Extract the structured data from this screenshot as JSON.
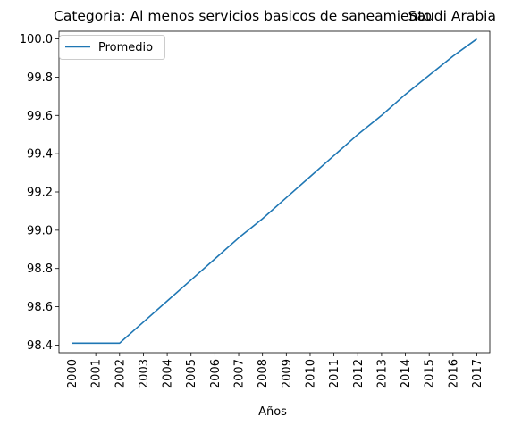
{
  "chart_data": {
    "type": "line",
    "title": "Categoria: Al menos servicios basicos de saneamiento",
    "title_right": "Saudi Arabia",
    "xlabel": "Años",
    "ylabel": "",
    "categories": [
      "2000",
      "2001",
      "2002",
      "2003",
      "2004",
      "2005",
      "2006",
      "2007",
      "2008",
      "2009",
      "2010",
      "2011",
      "2012",
      "2013",
      "2014",
      "2015",
      "2016",
      "2017"
    ],
    "y_ticks": [
      "98.4",
      "98.6",
      "98.8",
      "99.0",
      "99.2",
      "99.4",
      "99.6",
      "99.8",
      "100.0"
    ],
    "ylim": [
      98.36,
      100.04
    ],
    "grid": false,
    "legend_position": "upper-left",
    "series": [
      {
        "name": "Promedio",
        "color": "#1f77b4",
        "values": [
          98.41,
          98.41,
          98.41,
          98.52,
          98.63,
          98.74,
          98.85,
          98.96,
          99.06,
          99.17,
          99.28,
          99.39,
          99.5,
          99.6,
          99.71,
          99.81,
          99.91,
          100.0
        ]
      }
    ]
  }
}
